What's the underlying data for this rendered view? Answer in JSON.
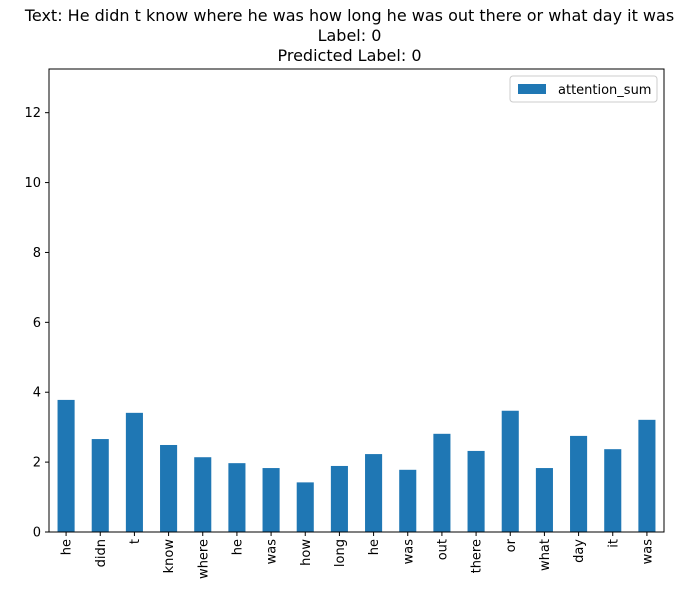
{
  "title_lines": [
    "Text: He didn t know where he was how long he was out there or what day it was",
    "Label: 0",
    "Predicted Label: 0"
  ],
  "chart_data": {
    "type": "bar",
    "categories": [
      "he",
      "didn",
      "t",
      "know",
      "where",
      "he",
      "was",
      "how",
      "long",
      "he",
      "was",
      "out",
      "there",
      "or",
      "what",
      "day",
      "it",
      "was"
    ],
    "series": [
      {
        "name": "attention_sum",
        "color": "#1f77b4",
        "values": [
          3.78,
          2.66,
          3.41,
          2.49,
          2.14,
          1.97,
          1.83,
          1.42,
          1.89,
          2.23,
          1.78,
          2.81,
          2.32,
          3.47,
          1.83,
          2.75,
          2.37,
          3.21
        ]
      }
    ],
    "ylim": [
      0,
      13.25
    ],
    "yticks": [
      0,
      2,
      4,
      6,
      8,
      10,
      12
    ],
    "xlabel": "",
    "ylabel": "",
    "grid": false,
    "legend": "top-right"
  }
}
